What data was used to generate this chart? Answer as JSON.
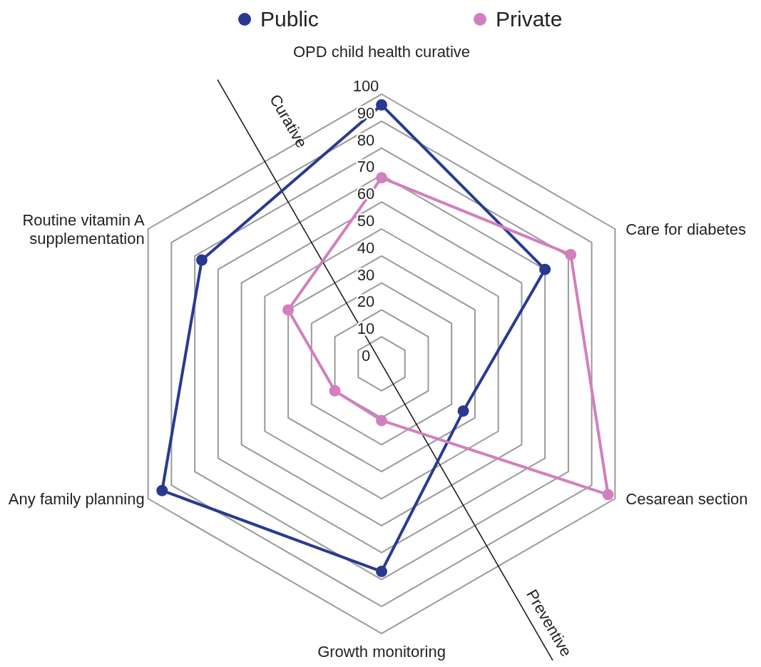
{
  "chart_data": {
    "type": "radar",
    "categories": [
      "OPD child health curative",
      "Care for diabetes",
      "Cesarean section",
      "Growth monitoring",
      "Any family planning",
      "Routine vitamin A supplementation"
    ],
    "series": [
      {
        "name": "Public",
        "color": "#2a3990",
        "values": [
          96,
          70,
          35,
          77,
          94,
          77
        ]
      },
      {
        "name": "Private",
        "color": "#d17fbf",
        "values": [
          69,
          81,
          97,
          21,
          20,
          40
        ]
      }
    ],
    "ylim": [
      0,
      100
    ],
    "yticks": [
      0,
      10,
      20,
      30,
      40,
      50,
      60,
      70,
      80,
      90,
      100
    ],
    "grid": true,
    "legend": "top",
    "marker": "circle",
    "line_style": "solid",
    "annotations": [
      "Curative",
      "Preventive"
    ]
  }
}
